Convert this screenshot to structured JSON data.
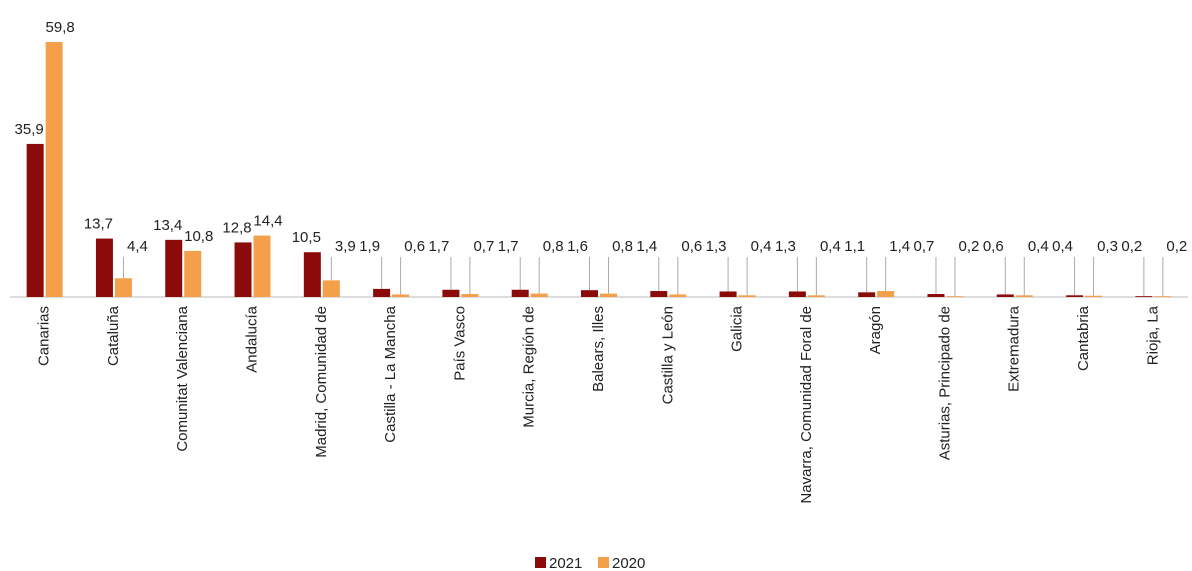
{
  "chart_data": {
    "type": "bar",
    "categories": [
      "Canarias",
      "Cataluña",
      "Comunitat Valenciana",
      "Andalucía",
      "Madrid, Comunidad de",
      "Castilla  - La Mancha",
      "País Vasco",
      "Murcia, Región de",
      "Balears, Illes",
      "Castilla y León",
      "Galicia",
      "Navarra, Comunidad Foral de",
      "Aragón",
      "Asturias, Principado de",
      "Extremadura",
      "Cantabria",
      "Rioja, La"
    ],
    "series": [
      {
        "name": "2021",
        "color": "#8b0a0a",
        "values": [
          35.9,
          13.7,
          13.4,
          12.8,
          10.5,
          1.9,
          1.7,
          1.7,
          1.6,
          1.4,
          1.3,
          1.3,
          1.1,
          0.7,
          0.6,
          0.4,
          0.2
        ],
        "value_labels": [
          "35,9",
          "13,7",
          "13,4",
          "12,8",
          "10,5",
          "1,9",
          "1,7",
          "1,7",
          "1,6",
          "1,4",
          "1,3",
          "1,3",
          "1,1",
          "0,7",
          "0,6",
          "0,4",
          "0,2"
        ]
      },
      {
        "name": "2020",
        "color": "#f4a04a",
        "values": [
          59.8,
          4.4,
          10.8,
          14.4,
          3.9,
          0.6,
          0.7,
          0.8,
          0.8,
          0.6,
          0.4,
          0.4,
          1.4,
          0.2,
          0.4,
          0.3,
          0.2
        ],
        "value_labels": [
          "59,8",
          "4,4",
          "10,8",
          "14,4",
          "3,9",
          "0,6",
          "0,7",
          "0,8",
          "0,8",
          "0,6",
          "0,4",
          "0,4",
          "1,4",
          "0,2",
          "0,4",
          "0,3",
          "0,2"
        ]
      }
    ],
    "legend": "bottom"
  }
}
